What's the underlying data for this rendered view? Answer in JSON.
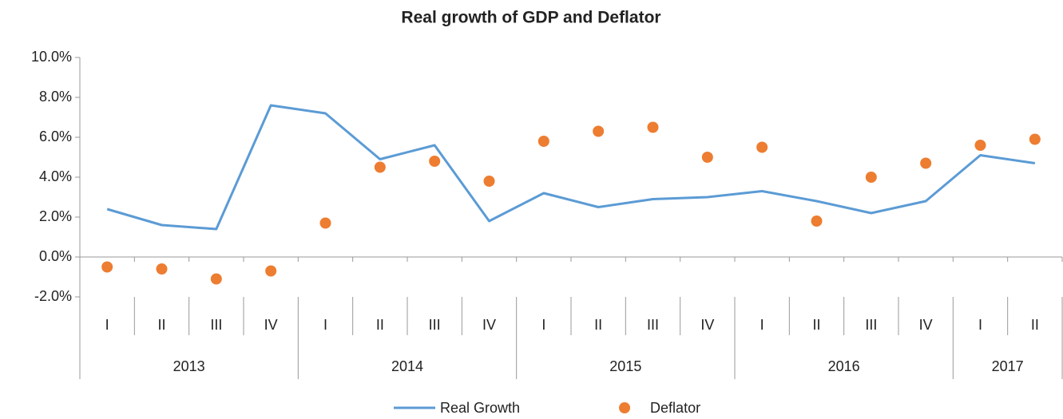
{
  "chart_data": {
    "type": "line",
    "title": "Real growth of GDP and Deflator",
    "categories": [
      "I",
      "II",
      "III",
      "IV",
      "I",
      "II",
      "III",
      "IV",
      "I",
      "II",
      "III",
      "IV",
      "I",
      "II",
      "III",
      "IV",
      "I",
      "II"
    ],
    "category_groups": [
      "2013",
      "2013",
      "2013",
      "2013",
      "2014",
      "2014",
      "2014",
      "2014",
      "2015",
      "2015",
      "2015",
      "2015",
      "2016",
      "2016",
      "2016",
      "2016",
      "2017",
      "2017"
    ],
    "series": [
      {
        "name": "Real Growth",
        "color": "#5b9bd5",
        "style": "line",
        "values": [
          2.4,
          1.6,
          1.4,
          7.6,
          7.2,
          4.9,
          5.6,
          1.8,
          3.2,
          2.5,
          2.9,
          3.0,
          3.3,
          2.8,
          2.2,
          2.8,
          5.1,
          4.7
        ]
      },
      {
        "name": "Deflator",
        "color": "#ed7d31",
        "style": "marker",
        "values": [
          -0.5,
          -0.6,
          -1.1,
          -0.7,
          1.7,
          4.5,
          4.8,
          3.8,
          5.8,
          6.3,
          6.5,
          5.0,
          5.5,
          1.8,
          4.0,
          4.7,
          5.6,
          5.9
        ]
      }
    ],
    "ylim": [
      -2,
      10
    ],
    "yticks": [
      {
        "value": -2,
        "label": "-2.0%"
      },
      {
        "value": 0,
        "label": "0.0%"
      },
      {
        "value": 2,
        "label": "2.0%"
      },
      {
        "value": 4,
        "label": "4.0%"
      },
      {
        "value": 6,
        "label": "6.0%"
      },
      {
        "value": 8,
        "label": "8.0%"
      },
      {
        "value": 10,
        "label": "10.0%"
      }
    ],
    "grid": false,
    "legend": "bottom"
  }
}
